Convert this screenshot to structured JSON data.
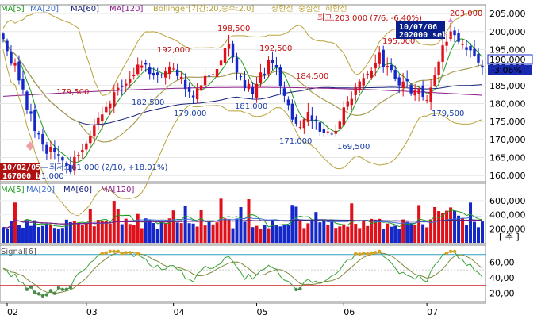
{
  "price_panel": {
    "legend": [
      {
        "text": "MA[5]",
        "color": "#1a9c1a"
      },
      {
        "text": "MA[20]",
        "color": "#3a6fd1"
      },
      {
        "text": "MA[60]",
        "color": "#17207a"
      },
      {
        "text": "MA[120]",
        "color": "#8b1a8b"
      },
      {
        "text": "Bollinger[기간:20,승수:2.0]",
        "color": "#b8a33a"
      },
      {
        "text": "상한선",
        "color": "#b8a33a"
      },
      {
        "text": "중심선",
        "color": "#b8a33a"
      },
      {
        "text": "하한선",
        "color": "#b8a33a"
      }
    ],
    "max_note": "최고:203,000 (7/6, -6.40%)",
    "min_note": "최저:161,000 (2/10, +18.01%)",
    "last_price": "190,000",
    "last_change": "-3.06%",
    "sell_tag": {
      "date": "10/07/06",
      "text": "202000 sell"
    },
    "buy_tag": {
      "date": "10/02/05",
      "text": "167000 buy"
    },
    "stub_label": "1,000",
    "peak_labels": [
      {
        "text": "203,000",
        "color": "#c01010"
      },
      {
        "text": "198,500",
        "color": "#c01010"
      },
      {
        "text": "192,000",
        "color": "#c01010"
      },
      {
        "text": "192,500",
        "color": "#c01010"
      },
      {
        "text": "184,500",
        "color": "#c01010"
      },
      {
        "text": "179,500",
        "color": "#c01010"
      },
      {
        "text": "195,000",
        "color": "#c01010"
      },
      {
        "text": "182,500",
        "color": "#1a3da8"
      },
      {
        "text": "179,000",
        "color": "#1a3da8"
      },
      {
        "text": "181,000",
        "color": "#1a3da8"
      },
      {
        "text": "171,000",
        "color": "#1a3da8"
      },
      {
        "text": "169,500",
        "color": "#1a3da8"
      },
      {
        "text": "179,500",
        "color": "#1a3da8"
      }
    ],
    "y_ticks": [
      "205,000",
      "200,000",
      "195,000",
      "190,000",
      "185,000",
      "180,000",
      "175,000",
      "170,000",
      "165,000",
      "160,000"
    ]
  },
  "volume_panel": {
    "legend": [
      {
        "text": "MA[5]",
        "color": "#1a9c1a"
      },
      {
        "text": "MA[20]",
        "color": "#3a6fd1"
      },
      {
        "text": "MA[60]",
        "color": "#17207a"
      },
      {
        "text": "MA[120]",
        "color": "#8b1a8b"
      }
    ],
    "y_ticks": [
      "600,000",
      "400,000",
      "200,000"
    ],
    "unit": "[ 주 ]"
  },
  "signal_panel": {
    "legend": "Signal[6]",
    "y_ticks": [
      "60,00",
      "40,00",
      "20,00"
    ]
  },
  "x_ticks": [
    "02",
    "03",
    "04",
    "05",
    "06",
    "07"
  ],
  "colors": {
    "up": "#e0101a",
    "down": "#1427c8",
    "bollinger": "#b8a33a",
    "ma5": "#1a9c1a",
    "ma20": "#3a6fd1",
    "ma60": "#17207a",
    "ma120": "#8b1a8b"
  },
  "chart_data": [
    {
      "type": "candlestick",
      "title": "",
      "ylim": [
        158500,
        207000
      ],
      "y_ticks": [
        205000,
        200000,
        195000,
        190000,
        185000,
        180000,
        175000,
        170000,
        165000,
        160000
      ],
      "x_months": [
        "02",
        "03",
        "04",
        "05",
        "06",
        "07"
      ],
      "labeled_extremes": [
        {
          "label": "최고",
          "value": 203000,
          "date": "7/6",
          "change_pct": -6.4
        },
        {
          "label": "최저",
          "value": 161000,
          "date": "2/10",
          "change_pct": 18.01
        }
      ],
      "labeled_highs": [
        198500,
        192000,
        192500,
        184500,
        179500,
        195000,
        203000
      ],
      "labeled_lows": [
        182500,
        179000,
        181000,
        171000,
        169500,
        179500
      ],
      "last": {
        "close": 190000,
        "change_pct": -3.06
      },
      "signals": [
        {
          "date": "10/02/05",
          "action": "buy",
          "price": 167000
        },
        {
          "date": "10/07/06",
          "action": "sell",
          "price": 202000
        }
      ],
      "series": [
        {
          "name": "MA[5]"
        },
        {
          "name": "MA[20]"
        },
        {
          "name": "MA[60]"
        },
        {
          "name": "MA[120]"
        },
        {
          "name": "Bollinger[기간:20,승수:2.0]"
        }
      ]
    },
    {
      "type": "bar",
      "title": "",
      "ylim": [
        0,
        700000
      ],
      "y_ticks": [
        600000,
        400000,
        200000
      ],
      "ylabel": "주",
      "series": [
        {
          "name": "MA[5]"
        },
        {
          "name": "MA[20]"
        },
        {
          "name": "MA[60]"
        },
        {
          "name": "MA[120]"
        }
      ]
    },
    {
      "type": "line",
      "title": "",
      "ylim": [
        10,
        80
      ],
      "y_ticks": [
        60,
        40,
        20
      ],
      "series": [
        {
          "name": "Signal[6]"
        }
      ]
    }
  ]
}
